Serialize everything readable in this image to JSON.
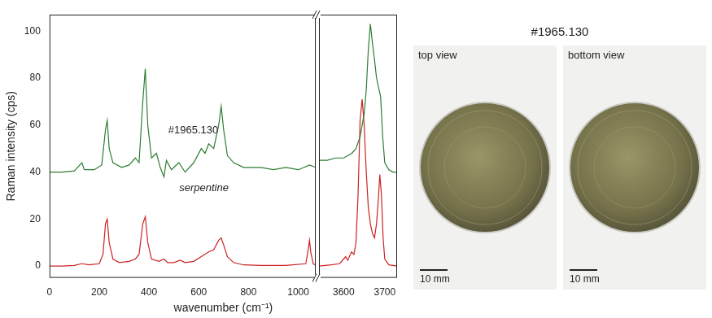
{
  "chart_data": [
    {
      "type": "line",
      "y_label": "Raman intensity (cps)",
      "x_label": "wavenumber (cm⁻¹)",
      "xlim": [
        0,
        1070
      ],
      "xticks": [
        0,
        200,
        400,
        600,
        800,
        1000
      ],
      "ylim": [
        -5,
        107
      ],
      "yticks": [
        0,
        20,
        40,
        60,
        80,
        100
      ],
      "grid": false,
      "series": [
        {
          "name": "#1965.130",
          "color": "#2e7d32",
          "x": [
            0,
            50,
            100,
            130,
            140,
            180,
            210,
            225,
            232,
            240,
            255,
            290,
            320,
            345,
            360,
            375,
            385,
            395,
            410,
            430,
            445,
            460,
            470,
            490,
            520,
            545,
            580,
            610,
            625,
            640,
            660,
            680,
            690,
            700,
            715,
            740,
            780,
            850,
            900,
            950,
            1000,
            1045,
            1070
          ],
          "values": [
            40,
            40,
            40.5,
            44,
            41,
            41,
            43,
            58,
            62,
            50,
            44,
            42,
            43,
            46,
            44,
            70,
            84,
            60,
            46,
            48,
            42,
            38,
            45,
            41,
            44,
            40,
            44,
            50,
            48,
            52,
            50,
            60,
            68,
            58,
            47,
            44,
            42,
            42,
            41,
            42,
            41,
            43,
            42
          ]
        },
        {
          "name": "serpentine",
          "color": "#cc2222",
          "x": [
            0,
            50,
            100,
            130,
            160,
            200,
            215,
            225,
            232,
            240,
            255,
            280,
            320,
            345,
            360,
            375,
            385,
            395,
            410,
            440,
            460,
            475,
            500,
            525,
            545,
            580,
            610,
            640,
            660,
            680,
            690,
            700,
            715,
            740,
            780,
            850,
            950,
            1030,
            1040,
            1045,
            1050,
            1060,
            1070
          ],
          "values": [
            0,
            0,
            0.3,
            1,
            0.5,
            1,
            5,
            18,
            20,
            10,
            3,
            1.5,
            2,
            3,
            5,
            18,
            21,
            10,
            3,
            2,
            3,
            1.5,
            1.5,
            2.5,
            1.5,
            2,
            4,
            6,
            7,
            11,
            12,
            9,
            4,
            1.5,
            0.5,
            0.3,
            0.3,
            1,
            7,
            11,
            6,
            1,
            0.3
          ]
        }
      ]
    },
    {
      "type": "line",
      "xlim": [
        3540,
        3730
      ],
      "xticks": [
        3600,
        3700
      ],
      "ylim": [
        -5,
        107
      ],
      "yticks": [
        0,
        20,
        40,
        60,
        80,
        100
      ],
      "grid": false,
      "tick_labels": "x",
      "series": [
        {
          "color": "#2e7d32",
          "x": [
            3540,
            3560,
            3580,
            3600,
            3620,
            3630,
            3640,
            3650,
            3655,
            3660,
            3665,
            3670,
            3675,
            3680,
            3685,
            3690,
            3695,
            3700,
            3710,
            3720,
            3730
          ],
          "values": [
            45,
            45,
            46,
            46,
            48,
            50,
            55,
            65,
            75,
            92,
            103,
            95,
            88,
            80,
            76,
            72,
            55,
            44,
            41,
            40,
            40
          ]
        },
        {
          "color": "#cc2222",
          "x": [
            3540,
            3570,
            3590,
            3600,
            3605,
            3610,
            3619,
            3625,
            3630,
            3635,
            3640,
            3645,
            3650,
            3655,
            3660,
            3665,
            3670,
            3675,
            3680,
            3685,
            3688,
            3692,
            3696,
            3700,
            3710,
            3730
          ],
          "values": [
            0,
            0.5,
            1,
            3,
            4,
            2.5,
            6,
            5,
            10,
            30,
            62,
            71,
            60,
            40,
            25,
            18,
            14,
            12,
            18,
            30,
            39,
            30,
            12,
            3,
            0.5,
            0
          ]
        }
      ]
    }
  ],
  "photo": {
    "title": "#1965.130",
    "views": [
      {
        "label": "top view",
        "scale_bar": "10 mm"
      },
      {
        "label": "bottom view",
        "scale_bar": "10 mm"
      }
    ]
  }
}
